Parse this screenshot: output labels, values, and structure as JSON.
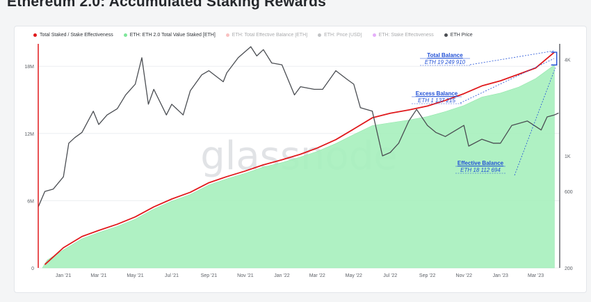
{
  "page": {
    "title": "Ethereum 2.0: Accumulated Staking Rewards"
  },
  "legend": [
    {
      "label": "Total Staked / Stake Effectiveness",
      "color": "#e0191c",
      "dim": false
    },
    {
      "label": "ETH: ETH 2.0 Total Value Staked [ETH]",
      "color": "#7ee69a",
      "dim": false
    },
    {
      "label": "ETH: Total Effective Balance [ETH]",
      "color": "#f06b6b",
      "dim": true
    },
    {
      "label": "ETH: Price [USD]",
      "color": "#6b6f75",
      "dim": true
    },
    {
      "label": "ETH: Stake Effectiveness",
      "color": "#c040f0",
      "dim": true
    },
    {
      "label": "ETH Price",
      "color": "#4a4d52",
      "dim": false
    }
  ],
  "watermark": "glassnode",
  "annotations": [
    {
      "title": "Total Balance",
      "value": "ETH 19 249 910"
    },
    {
      "title": "Excess Balance",
      "value": "ETH 1 137 215"
    },
    {
      "title": "Effective Balance",
      "value": "ETH 18 112 694"
    }
  ],
  "chart_data": {
    "type": "area",
    "title": "Ethereum 2.0: Accumulated Staking Rewards",
    "x_tick_labels": [
      "Jan '21",
      "Mar '21",
      "May '21",
      "Jul '21",
      "Sep '21",
      "Nov '21",
      "Jan '22",
      "Mar '22",
      "May '22",
      "Jul '22",
      "Sep '22",
      "Nov '22",
      "Jan '23",
      "Mar '23"
    ],
    "x_ticks": [
      "2021-01-01",
      "2021-03-01",
      "2021-05-01",
      "2021-07-01",
      "2021-09-01",
      "2021-11-01",
      "2022-01-01",
      "2022-03-01",
      "2022-05-01",
      "2022-07-01",
      "2022-09-01",
      "2022-11-01",
      "2023-01-01",
      "2023-03-01"
    ],
    "x_range": [
      "2020-11-20",
      "2023-04-10"
    ],
    "y_left": {
      "tick_labels": [
        "0",
        "6M",
        "12M",
        "18M"
      ],
      "ticks": [
        0,
        6000000,
        12000000,
        18000000
      ],
      "range": [
        0,
        20000000
      ]
    },
    "y_right": {
      "scale": "log",
      "tick_labels": [
        "200",
        "600",
        "1K",
        "4K"
      ],
      "ticks": [
        200,
        600,
        1000,
        4000
      ],
      "range": [
        200,
        5000
      ]
    },
    "grid": true,
    "legend_position": "top-left",
    "series": [
      {
        "name": "ETH: ETH 2.0 Total Value Staked [ETH]",
        "axis": "left",
        "style": "area",
        "color": "#a6efbc",
        "points": [
          [
            "2020-11-27",
            0
          ],
          [
            "2020-12-05",
            700000
          ],
          [
            "2021-01-01",
            1600000
          ],
          [
            "2021-02-01",
            2600000
          ],
          [
            "2021-03-01",
            3150000
          ],
          [
            "2021-04-01",
            3700000
          ],
          [
            "2021-05-01",
            4350000
          ],
          [
            "2021-06-01",
            5250000
          ],
          [
            "2021-07-01",
            5950000
          ],
          [
            "2021-08-01",
            6550000
          ],
          [
            "2021-09-01",
            7400000
          ],
          [
            "2021-10-01",
            7950000
          ],
          [
            "2021-11-01",
            8450000
          ],
          [
            "2021-12-01",
            9000000
          ],
          [
            "2022-01-01",
            9400000
          ],
          [
            "2022-02-01",
            9900000
          ],
          [
            "2022-03-01",
            10400000
          ],
          [
            "2022-04-01",
            11100000
          ],
          [
            "2022-05-01",
            11900000
          ],
          [
            "2022-06-01",
            12700000
          ],
          [
            "2022-07-01",
            12950000
          ],
          [
            "2022-08-01",
            13200000
          ],
          [
            "2022-09-01",
            13500000
          ],
          [
            "2022-10-01",
            13950000
          ],
          [
            "2022-11-01",
            14500000
          ],
          [
            "2022-12-01",
            15250000
          ],
          [
            "2023-01-01",
            15600000
          ],
          [
            "2023-02-01",
            16150000
          ],
          [
            "2023-03-01",
            16900000
          ],
          [
            "2023-04-01",
            18112694
          ]
        ]
      },
      {
        "name": "Total Staked / Stake Effectiveness",
        "axis": "left",
        "style": "line",
        "color": "#e0191c",
        "points": [
          [
            "2020-12-01",
            300000
          ],
          [
            "2021-01-01",
            1800000
          ],
          [
            "2021-02-01",
            2800000
          ],
          [
            "2021-03-01",
            3350000
          ],
          [
            "2021-04-01",
            3900000
          ],
          [
            "2021-05-01",
            4550000
          ],
          [
            "2021-06-01",
            5450000
          ],
          [
            "2021-07-01",
            6150000
          ],
          [
            "2021-08-01",
            6750000
          ],
          [
            "2021-09-01",
            7600000
          ],
          [
            "2021-10-01",
            8150000
          ],
          [
            "2021-11-01",
            8650000
          ],
          [
            "2021-12-01",
            9200000
          ],
          [
            "2022-01-01",
            9650000
          ],
          [
            "2022-02-01",
            10150000
          ],
          [
            "2022-03-01",
            10700000
          ],
          [
            "2022-04-01",
            11450000
          ],
          [
            "2022-05-01",
            12400000
          ],
          [
            "2022-06-01",
            13400000
          ],
          [
            "2022-07-01",
            13800000
          ],
          [
            "2022-08-01",
            14100000
          ],
          [
            "2022-09-01",
            14450000
          ],
          [
            "2022-10-01",
            14950000
          ],
          [
            "2022-11-01",
            15550000
          ],
          [
            "2022-12-01",
            16250000
          ],
          [
            "2023-01-01",
            16700000
          ],
          [
            "2023-02-01",
            17300000
          ],
          [
            "2023-03-01",
            17850000
          ],
          [
            "2023-04-01",
            19249910
          ]
        ]
      },
      {
        "name": "ETH Price",
        "axis": "right",
        "style": "line",
        "color": "#4a4d52",
        "points": [
          [
            "2020-11-20",
            480
          ],
          [
            "2020-12-01",
            600
          ],
          [
            "2020-12-15",
            620
          ],
          [
            "2021-01-01",
            740
          ],
          [
            "2021-01-10",
            1200
          ],
          [
            "2021-01-20",
            1300
          ],
          [
            "2021-02-01",
            1400
          ],
          [
            "2021-02-20",
            1900
          ],
          [
            "2021-03-01",
            1570
          ],
          [
            "2021-03-15",
            1800
          ],
          [
            "2021-04-01",
            1970
          ],
          [
            "2021-04-15",
            2400
          ],
          [
            "2021-05-01",
            2800
          ],
          [
            "2021-05-12",
            4100
          ],
          [
            "2021-05-23",
            2100
          ],
          [
            "2021-06-01",
            2600
          ],
          [
            "2021-06-22",
            1800
          ],
          [
            "2021-07-01",
            2100
          ],
          [
            "2021-07-20",
            1800
          ],
          [
            "2021-08-01",
            2550
          ],
          [
            "2021-08-20",
            3200
          ],
          [
            "2021-09-01",
            3400
          ],
          [
            "2021-09-25",
            2900
          ],
          [
            "2021-10-01",
            3300
          ],
          [
            "2021-10-20",
            4100
          ],
          [
            "2021-11-10",
            4800
          ],
          [
            "2021-11-20",
            4200
          ],
          [
            "2021-12-01",
            4600
          ],
          [
            "2021-12-15",
            3800
          ],
          [
            "2022-01-01",
            3700
          ],
          [
            "2022-01-22",
            2400
          ],
          [
            "2022-02-01",
            2700
          ],
          [
            "2022-02-24",
            2600
          ],
          [
            "2022-03-10",
            2600
          ],
          [
            "2022-04-01",
            3400
          ],
          [
            "2022-04-20",
            3000
          ],
          [
            "2022-05-01",
            2800
          ],
          [
            "2022-05-12",
            2000
          ],
          [
            "2022-06-01",
            1900
          ],
          [
            "2022-06-18",
            1000
          ],
          [
            "2022-07-01",
            1050
          ],
          [
            "2022-07-15",
            1200
          ],
          [
            "2022-08-01",
            1650
          ],
          [
            "2022-08-14",
            1950
          ],
          [
            "2022-09-01",
            1550
          ],
          [
            "2022-09-15",
            1400
          ],
          [
            "2022-10-01",
            1320
          ],
          [
            "2022-11-01",
            1550
          ],
          [
            "2022-11-09",
            1150
          ],
          [
            "2022-12-01",
            1270
          ],
          [
            "2022-12-20",
            1200
          ],
          [
            "2023-01-01",
            1200
          ],
          [
            "2023-01-20",
            1550
          ],
          [
            "2023-02-15",
            1650
          ],
          [
            "2023-03-10",
            1450
          ],
          [
            "2023-03-20",
            1750
          ],
          [
            "2023-04-01",
            1800
          ],
          [
            "2023-04-08",
            1850
          ]
        ]
      }
    ],
    "bracket": {
      "x": "2023-04-05",
      "from": 18112694,
      "to": 19249910
    }
  }
}
